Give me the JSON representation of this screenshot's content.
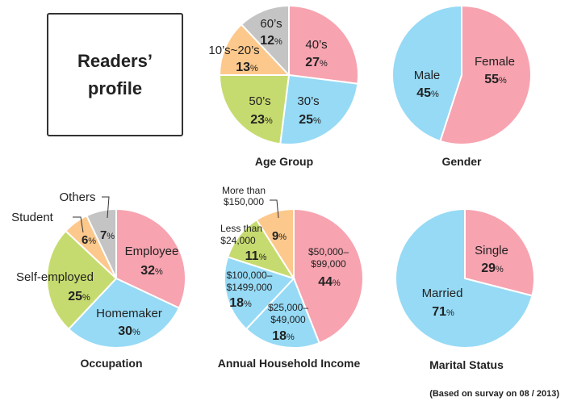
{
  "title_box": {
    "line1": "Readers’",
    "line2": "profile"
  },
  "footnote": "(Based on survay on 08 / 2013)",
  "colors": {
    "pink": "#f7a3b0",
    "blue": "#96daf5",
    "green": "#c6db6f",
    "orange": "#fdc88c",
    "gray": "#c4c4c4"
  },
  "chart_data": [
    {
      "type": "pie",
      "title": "Age Group",
      "slices": [
        {
          "label": "40’s",
          "value": 27,
          "color": "pink"
        },
        {
          "label": "30’s",
          "value": 25,
          "color": "blue"
        },
        {
          "label": "50’s",
          "value": 23,
          "color": "green"
        },
        {
          "label": "10’s~20’s",
          "value": 13,
          "color": "orange"
        },
        {
          "label": "60’s",
          "value": 12,
          "color": "gray"
        }
      ]
    },
    {
      "type": "pie",
      "title": "Gender",
      "slices": [
        {
          "label": "Female",
          "value": 55,
          "color": "pink"
        },
        {
          "label": "Male",
          "value": 45,
          "color": "blue"
        }
      ]
    },
    {
      "type": "pie",
      "title": "Occupation",
      "slices": [
        {
          "label": "Employee",
          "value": 32,
          "color": "pink"
        },
        {
          "label": "Homemaker",
          "value": 30,
          "color": "blue"
        },
        {
          "label": "Self-employed",
          "value": 25,
          "color": "green"
        },
        {
          "label": "Student",
          "value": 6,
          "color": "orange"
        },
        {
          "label": "Others",
          "value": 7,
          "color": "gray"
        }
      ]
    },
    {
      "type": "pie",
      "title": "Annual Household Income",
      "slices": [
        {
          "label": "$50,000–$99,000",
          "value": 44,
          "color": "pink"
        },
        {
          "label": "$25,000–$49,000",
          "value": 18,
          "color": "blue"
        },
        {
          "label": "$100,000–$1499,000",
          "value": 18,
          "color": "blue"
        },
        {
          "label": "Less than $24,000",
          "value": 11,
          "color": "green"
        },
        {
          "label": "More than $150,000",
          "value": 9,
          "color": "orange"
        }
      ]
    },
    {
      "type": "pie",
      "title": "Marital Status",
      "slices": [
        {
          "label": "Single",
          "value": 29,
          "color": "pink"
        },
        {
          "label": "Married",
          "value": 71,
          "color": "blue"
        }
      ]
    }
  ]
}
